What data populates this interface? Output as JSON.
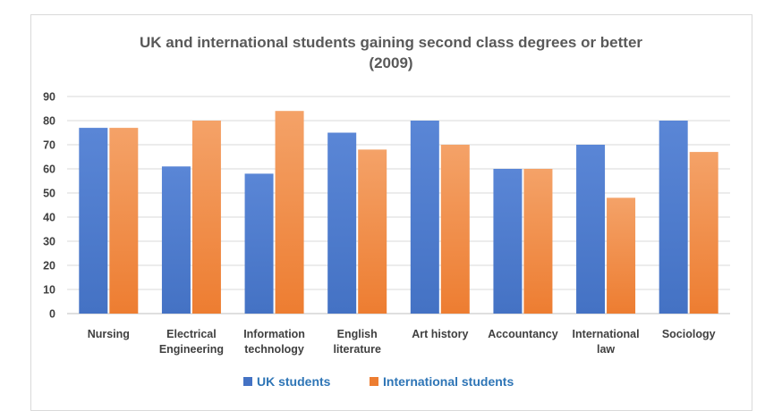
{
  "chart_data": {
    "type": "bar",
    "title_lines": [
      "UK and international students gaining second class degrees or better",
      "(2009)"
    ],
    "categories": [
      [
        "Nursing"
      ],
      [
        "Electrical",
        "Engineering"
      ],
      [
        "Information",
        "technology"
      ],
      [
        "English",
        "literature"
      ],
      [
        "Art history"
      ],
      [
        "Accountancy"
      ],
      [
        "International",
        "law"
      ],
      [
        "Sociology"
      ]
    ],
    "series": [
      {
        "name": "UK students",
        "color": "#4472c4",
        "color_light": "#5a86d6",
        "values": [
          77,
          61,
          58,
          75,
          80,
          60,
          70,
          80
        ]
      },
      {
        "name": "International students",
        "color": "#ed7d31",
        "color_light": "#f4a268",
        "values": [
          77,
          80,
          84,
          68,
          70,
          60,
          48,
          67
        ]
      }
    ],
    "ylim": [
      0,
      90
    ],
    "yticks": [
      0,
      10,
      20,
      30,
      40,
      50,
      60,
      70,
      80,
      90
    ],
    "grid": true,
    "legend_position": "bottom",
    "legend_text_color": "#2e75b6"
  }
}
